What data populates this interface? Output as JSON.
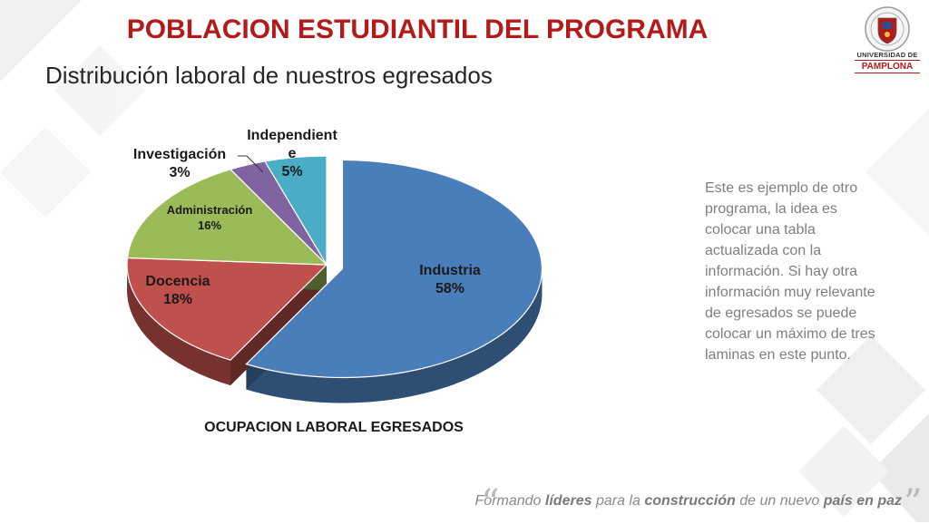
{
  "slide": {
    "title": "POBLACION ESTUDIANTIL DEL PROGRAMA",
    "subtitle": "Distribución laboral de nuestros egresados"
  },
  "logo": {
    "line1": "UNIVERSIDAD DE",
    "line2": "PAMPLONA"
  },
  "side_text": "Este es ejemplo de otro programa, la idea es colocar una tabla actualizada con la información.   Si hay otra información muy relevante de egresados se puede colocar un máximo de tres laminas en este punto.",
  "footer": {
    "p1": "Formando ",
    "p2": "líderes",
    "p3": " para la ",
    "p4": "construcción",
    "p5": " de un nuevo ",
    "p6": "país en paz",
    "open_quote": "“",
    "close_quote": "”"
  },
  "colors": {
    "title": "#b31b1b",
    "industria": "#4a7ebb",
    "docencia": "#c0504d",
    "administracion": "#9bbb59",
    "investigacion": "#8064a2",
    "independiente": "#4bacc6"
  },
  "chart_data": {
    "type": "pie",
    "title": "OCUPACION LABORAL EGRESADOS",
    "three_d": true,
    "slices": [
      {
        "label": "Industria",
        "value": 58,
        "value_label": "58%",
        "color": "#4a7ebb"
      },
      {
        "label": "Docencia",
        "value": 18,
        "value_label": "18%",
        "color": "#c0504d"
      },
      {
        "label": "Administración",
        "value": 16,
        "value_label": "16%",
        "color": "#9bbb59"
      },
      {
        "label": "Investigación",
        "value": 3,
        "value_label": "3%",
        "color": "#8064a2"
      },
      {
        "label": "Independiente",
        "value": 5,
        "value_label": "5%",
        "color": "#4bacc6"
      }
    ]
  }
}
